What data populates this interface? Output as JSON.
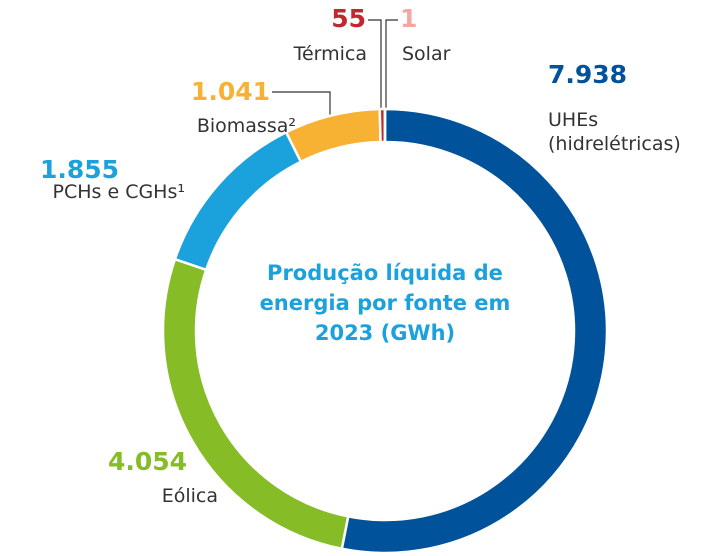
{
  "chart_data": {
    "type": "pie",
    "title": "Produção líquida de energia por fonte em 2023 (GWh)",
    "categories": [
      "UHEs (hidrelétricas)",
      "Eólica",
      "PCHs e CGHs¹",
      "Biomassa²",
      "Térmica",
      "Solar"
    ],
    "values": [
      7938,
      4054,
      1855,
      1041,
      55,
      1
    ],
    "value_labels": [
      "7.938",
      "4.054",
      "1.855",
      "1.041",
      "55",
      "1"
    ],
    "colors": [
      "#00529b",
      "#86bc25",
      "#1ba1dc",
      "#f7b133",
      "#c0282d",
      "#f4a6a0"
    ]
  }
}
